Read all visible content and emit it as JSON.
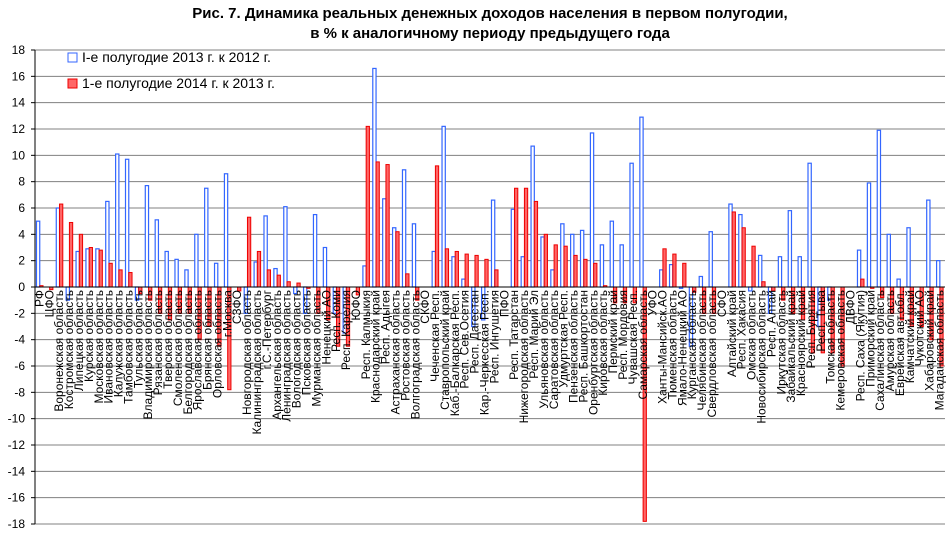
{
  "chart_data": {
    "type": "bar",
    "title": [
      "Рис. 7. Динамика реальных денежных доходов населения в первом  полугодии,",
      "в % к аналогичному периоду предыдущего года"
    ],
    "xlabel": "",
    "ylabel": "",
    "ylim": [
      -18,
      18
    ],
    "yticks": [
      -18,
      -16,
      -14,
      -12,
      -10,
      -8,
      -6,
      -4,
      -2,
      0,
      2,
      4,
      6,
      8,
      10,
      12,
      14,
      16,
      18
    ],
    "grid": true,
    "legend_position": "top-left",
    "colors": {
      "s2013_stroke": "#3366ff",
      "s2014_fill": "#ff6666",
      "s2014_stroke": "#ee0000",
      "grid": "#808080"
    },
    "categories": [
      "РФ",
      "ЦФО",
      "Воронежская область",
      "Костромская область",
      "Липецкая область",
      "Курская область",
      "Московская область",
      "Ивановская область",
      "Калужская область",
      "Тамбовская область",
      "Тульская область",
      "Владимирская область",
      "Рязанская область",
      "Тверская область",
      "Смоленская область",
      "Белгородская область",
      "Ярославская область",
      "Брянская область",
      "Орловская область",
      "г.Москва",
      "СЗФО",
      "Новгородская область",
      "Калининградская область",
      "г.С.-Петербург",
      "Архангельская область",
      "Ленинградская область",
      "Вологодская область",
      "Псковская область",
      "Мурманская область",
      "Ненецкий АО",
      "Респ. Коми",
      "Респ. Карелия",
      "ЮФО",
      "Респ. Калмыкия",
      "Краснодарский край",
      "Респ. Адыгея",
      "Астраханская область",
      "Ростовская область",
      "Волгоградская область",
      "СКФО",
      "Чеченская Респ.",
      "Ставропольский край",
      "Каб.-Балкарская Респ.",
      "Респ. Сев.Осетия",
      "Респ. Дагестан",
      "Кар.-Черкесская Респ.",
      "Респ. Ингушетия",
      "ПФО",
      "Респ. Татарстан",
      "Нижегородская область",
      "Респ. Марий Эл",
      "Ульяновская область",
      "Саратовская область",
      "Удмуртская Респ.",
      "Пензенская область",
      "Респ. Башкортостан",
      "Оренбургская область",
      "Кировская область",
      "Пермский край",
      "Респ. Мордовия",
      "Чувашская Респ.",
      "Самарская область",
      "УФО",
      "Ханты-Мансийск.АО",
      "Тюменская область",
      "Ямало-Ненецкий АО",
      "Курганская область",
      "Челябинская область",
      "Свердловская область",
      "СФО",
      "Алтайский край",
      "Респ. Хакасия",
      "Омская область",
      "Новосибирская область",
      "Респ. Алтай",
      "Иркутская область",
      "Забайкальский край",
      "Красноярский край",
      "Респ. Бурятия",
      "Респ. Тыва",
      "Томская область",
      "Кемеровская область",
      "ДВФО",
      "Респ. Саха (Якутия)",
      "Приморский край",
      "Сахалинская область",
      "Амурская область",
      "Еврейская авт.обл.",
      "Камчатский край",
      "Чукотский АО",
      "Хабаровский край",
      "Магаданская область"
    ],
    "series": [
      {
        "name": "I-е полугодие 2013 г. к 2012 г.",
        "values": [
          5.0,
          0,
          6.0,
          -1.0,
          2.7,
          2.9,
          2.9,
          6.5,
          10.1,
          9.7,
          -1.0,
          7.7,
          5.1,
          2.7,
          2.1,
          1.3,
          4.0,
          7.5,
          1.8,
          8.6,
          0,
          -2.0,
          1.9,
          5.4,
          1.4,
          6.1,
          -0.5,
          -2.0,
          5.5,
          3.0,
          -2.0,
          -3.5,
          0,
          1.6,
          16.6,
          6.7,
          4.5,
          8.9,
          4.8,
          0,
          2.7,
          12.2,
          2.3,
          0.6,
          -3.0,
          -2.5,
          6.6,
          0,
          5.9,
          2.3,
          10.7,
          3.8,
          1.3,
          4.8,
          4.0,
          4.3,
          11.7,
          3.2,
          5.0,
          3.2,
          9.4,
          12.9,
          0,
          1.3,
          1.7,
          -0.1,
          -4.5,
          0.8,
          4.2,
          0,
          6.3,
          5.5,
          -0.3,
          2.4,
          -2.0,
          2.3,
          5.8,
          2.3,
          9.4,
          -3.0,
          -1.0,
          0,
          0,
          2.8,
          7.9,
          11.9,
          4.0,
          0.6,
          4.5,
          0,
          6.6,
          2.0
        ]
      },
      {
        "name": "1-е полугодие 2014 г. к 2013 г.",
        "values": [
          0.1,
          -0.2,
          6.3,
          4.9,
          4.0,
          3.0,
          2.8,
          1.8,
          1.3,
          1.1,
          -0.5,
          -1.0,
          -2.0,
          -2.5,
          -2.0,
          -2.0,
          -4.0,
          -3.0,
          -4.5,
          -7.8,
          -0.3,
          5.3,
          2.7,
          1.3,
          0.9,
          0.4,
          0.3,
          -0.1,
          -2.0,
          -2.5,
          -4.5,
          -4.5,
          -0.6,
          12.2,
          9.5,
          9.3,
          4.2,
          1.0,
          -1.0,
          0,
          9.2,
          2.9,
          2.7,
          2.5,
          2.4,
          2.1,
          1.3,
          0,
          7.5,
          7.5,
          6.5,
          4.0,
          3.2,
          3.1,
          2.4,
          2.1,
          1.8,
          0.1,
          -1.2,
          -1.2,
          -1.2,
          -17.8,
          0,
          2.9,
          2.5,
          1.8,
          -0.4,
          -2.0,
          -2.0,
          0,
          5.7,
          4.5,
          3.1,
          0.4,
          -0.3,
          -1.0,
          -2.0,
          -2.5,
          -5.0,
          -5.0,
          -5.0,
          -6.0,
          0,
          0.6,
          -0.1,
          -0.8,
          -2.0,
          -2.5,
          -3.0,
          -3.0,
          -4.0,
          -6.0
        ]
      }
    ]
  }
}
